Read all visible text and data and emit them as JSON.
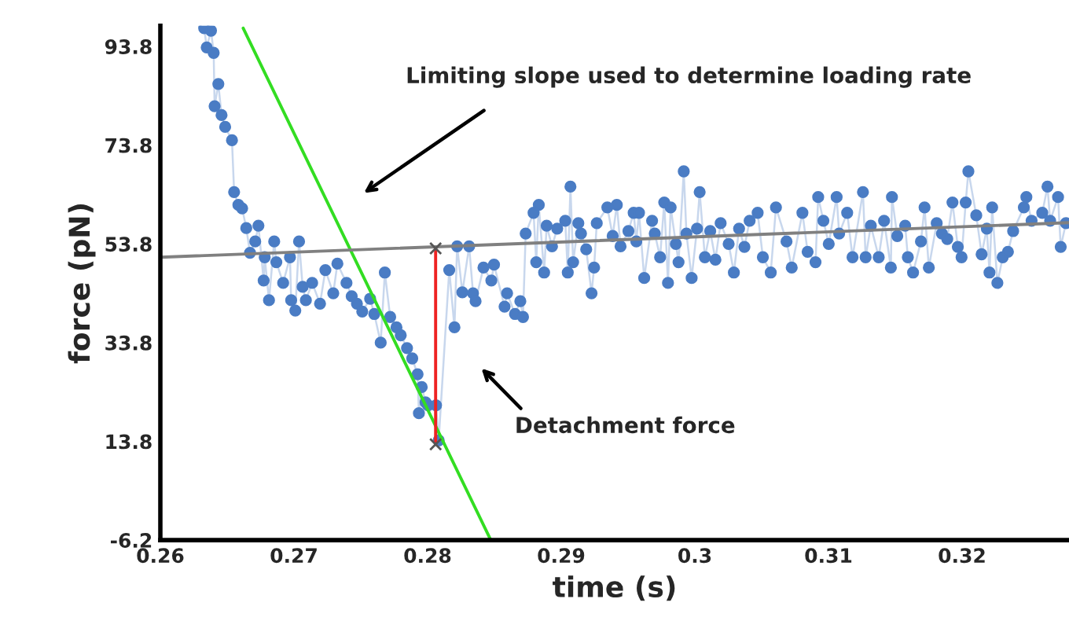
{
  "chart_data": {
    "type": "line",
    "xlabel": "time (s)",
    "ylabel": "force (pN)",
    "xlim": [
      0.26,
      0.328
    ],
    "ylim": [
      -6.2,
      98
    ],
    "xticks": [
      0.26,
      0.27,
      0.28,
      0.29,
      {
        "value": 0.3,
        "label": "0.3"
      },
      0.31,
      0.32
    ],
    "yticks": [
      -6.2,
      13.8,
      33.8,
      53.8,
      73.8,
      93.8
    ],
    "grid": false,
    "legend": false,
    "series": [
      {
        "marker": "circle",
        "line_style": "solid",
        "color": "#4a7cc4",
        "x": [
          0.26328,
          0.26347,
          0.26379,
          0.26399,
          0.26406,
          0.26434,
          0.26458,
          0.26485,
          0.26536,
          0.26552,
          0.26584,
          0.26612,
          0.26643,
          0.26671,
          0.2671,
          0.26734,
          0.26773,
          0.26781,
          0.26813,
          0.26852,
          0.26868,
          0.26919,
          0.2697,
          0.26979,
          0.2701,
          0.27038,
          0.27065,
          0.27089,
          0.27136,
          0.27195,
          0.27235,
          0.27294,
          0.27325,
          0.27393,
          0.27432,
          0.27471,
          0.27511,
          0.2757,
          0.27601,
          0.27649,
          0.2768,
          0.2772,
          0.27767,
          0.27799,
          0.27846,
          0.27885,
          0.27925,
          0.27935,
          0.27956,
          0.27985,
          0.28004,
          0.28063,
          0.28083,
          0.28162,
          0.28201,
          0.28221,
          0.2826,
          0.28311,
          0.2834,
          0.28359,
          0.28418,
          0.28477,
          0.28497,
          0.28576,
          0.28595,
          0.28654,
          0.28694,
          0.28714,
          0.28734,
          0.28793,
          0.28813,
          0.28832,
          0.28872,
          0.28891,
          0.28931,
          0.2897,
          0.2903,
          0.29049,
          0.29069,
          0.29089,
          0.29128,
          0.29148,
          0.29187,
          0.29227,
          0.29246,
          0.29266,
          0.29345,
          0.29385,
          0.29416,
          0.29444,
          0.29503,
          0.29542,
          0.29562,
          0.29582,
          0.29621,
          0.2968,
          0.297,
          0.2974,
          0.29771,
          0.29799,
          0.29819,
          0.29858,
          0.29878,
          0.29917,
          0.29937,
          0.29976,
          0.30016,
          0.30036,
          0.30075,
          0.30115,
          0.30154,
          0.30193,
          0.30253,
          0.30292,
          0.30331,
          0.30371,
          0.3041,
          0.3047,
          0.30509,
          0.30568,
          0.30607,
          0.30686,
          0.30725,
          0.30805,
          0.30844,
          0.30903,
          0.30923,
          0.30962,
          0.31002,
          0.31061,
          0.3108,
          0.3114,
          0.3118,
          0.31258,
          0.31278,
          0.31317,
          0.31376,
          0.31416,
          0.31467,
          0.31475,
          0.31515,
          0.31574,
          0.31594,
          0.31633,
          0.31692,
          0.31719,
          0.31751,
          0.3181,
          0.31849,
          0.31889,
          0.31928,
          0.31968,
          0.31996,
          0.32027,
          0.32047,
          0.32106,
          0.32146,
          0.32185,
          0.32205,
          0.32225,
          0.32264,
          0.32304,
          0.32343,
          0.32382,
          0.32462,
          0.32481,
          0.3252,
          0.326,
          0.32639,
          0.32659,
          0.32718,
          0.32738,
          0.32777
        ],
        "values": [
          97.5,
          93.6,
          97.0,
          92.5,
          81.7,
          86.2,
          79.9,
          77.5,
          74.8,
          64.3,
          61.7,
          61.0,
          57.0,
          52.0,
          54.3,
          57.5,
          46.4,
          51.1,
          42.4,
          54.3,
          50.1,
          45.9,
          51.1,
          42.4,
          40.3,
          54.3,
          45.1,
          42.4,
          45.9,
          41.7,
          48.5,
          43.8,
          49.8,
          45.9,
          43.2,
          41.7,
          40.1,
          42.7,
          39.6,
          33.8,
          48.0,
          39.0,
          36.9,
          35.3,
          32.7,
          30.6,
          27.4,
          19.5,
          24.8,
          21.7,
          21.1,
          21.1,
          14.0,
          48.5,
          36.9,
          53.3,
          44.0,
          53.3,
          43.8,
          42.2,
          49.0,
          46.4,
          49.6,
          41.1,
          43.8,
          39.6,
          42.2,
          39.0,
          55.9,
          60.1,
          50.1,
          61.7,
          48.0,
          57.5,
          53.3,
          56.9,
          58.5,
          48.0,
          65.4,
          50.1,
          58.0,
          55.9,
          52.7,
          43.8,
          49.0,
          58.0,
          61.2,
          55.4,
          61.7,
          53.3,
          56.4,
          60.1,
          54.3,
          60.1,
          46.9,
          58.5,
          55.9,
          51.1,
          62.2,
          45.9,
          61.2,
          53.8,
          50.1,
          68.5,
          55.9,
          46.9,
          56.9,
          64.3,
          51.1,
          56.4,
          50.6,
          58.0,
          53.8,
          48.0,
          56.9,
          53.2,
          58.5,
          60.1,
          51.1,
          48.0,
          61.2,
          54.3,
          49.0,
          60.1,
          52.2,
          50.1,
          63.3,
          58.5,
          53.8,
          63.3,
          55.9,
          60.1,
          51.1,
          64.3,
          51.1,
          57.5,
          51.1,
          58.5,
          49.0,
          63.3,
          55.4,
          57.5,
          51.1,
          48.0,
          54.3,
          61.2,
          49.0,
          58.0,
          55.9,
          54.8,
          62.2,
          53.2,
          51.1,
          62.2,
          68.5,
          59.6,
          51.7,
          56.9,
          48.0,
          61.2,
          45.9,
          51.1,
          52.2,
          56.4,
          61.2,
          63.3,
          58.5,
          60.1,
          65.4,
          58.5,
          63.3,
          53.2,
          58.0
        ]
      },
      {
        "marker": "none",
        "line_style": "solid",
        "color": "#33dd22",
        "x": [
          0.2662,
          0.28473
        ],
        "values": [
          97.5,
          -6.2
        ]
      },
      {
        "marker": "none",
        "line_style": "solid",
        "color": "#808080",
        "x": [
          0.26,
          0.328
        ],
        "values": [
          51.1,
          58.1
        ]
      },
      {
        "marker": "cross",
        "line_style": "solid",
        "color": "#ee2222",
        "x": [
          0.2806,
          0.2806
        ],
        "values": [
          13.2,
          52.9
        ]
      }
    ],
    "annotations": [
      "Limiting slope used to determine loading rate",
      "Detachment force"
    ]
  }
}
